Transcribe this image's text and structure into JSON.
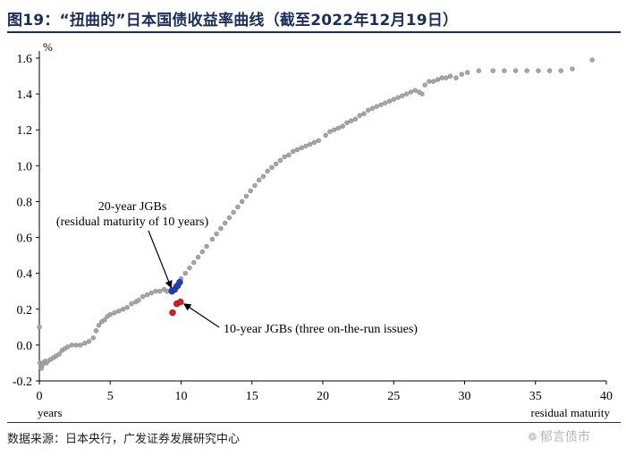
{
  "figure": {
    "title": "图19：“扭曲的”日本国债收益率曲线（截至2022年12月19日）",
    "source": "数据来源：日本央行，广发证券发展研究中心",
    "watermark": "郁言债市",
    "watermark_icon": "wechat-icon"
  },
  "chart_data": {
    "type": "scatter",
    "title": "",
    "ylabel": "%",
    "xlabel_left": "years",
    "xlabel_right": "residual maturity",
    "xlim": [
      0,
      40
    ],
    "ylim": [
      -0.2,
      1.6
    ],
    "x_ticks": [
      0,
      5,
      10,
      15,
      20,
      25,
      30,
      35,
      40
    ],
    "y_ticks": [
      -0.2,
      0.0,
      0.2,
      0.4,
      0.6,
      0.8,
      1.0,
      1.2,
      1.4,
      1.6
    ],
    "grid": false,
    "colors": {
      "all_jgbs": "#a6a6a6",
      "jgb20": "#1f3fbf",
      "jgb10": "#d42020"
    },
    "annotations": [
      {
        "id": "jgb20",
        "lines": [
          "20-year JGBs",
          "(residual maturity of 10 years)"
        ]
      },
      {
        "id": "jgb10",
        "lines": [
          "10-year JGBs (three on-the-run issues)"
        ]
      }
    ],
    "series": [
      {
        "key": "all",
        "points": [
          [
            0.0,
            0.1
          ],
          [
            0.05,
            -0.1
          ],
          [
            0.1,
            -0.12
          ],
          [
            0.15,
            -0.13
          ],
          [
            0.2,
            -0.11
          ],
          [
            0.3,
            -0.1
          ],
          [
            0.4,
            -0.09
          ],
          [
            0.5,
            -0.1
          ],
          [
            0.6,
            -0.09
          ],
          [
            0.8,
            -0.08
          ],
          [
            1.0,
            -0.07
          ],
          [
            1.2,
            -0.06
          ],
          [
            1.4,
            -0.05
          ],
          [
            1.6,
            -0.03
          ],
          [
            1.8,
            -0.02
          ],
          [
            2.0,
            -0.01
          ],
          [
            2.3,
            0.0
          ],
          [
            2.6,
            0.0
          ],
          [
            2.9,
            0.0
          ],
          [
            3.2,
            0.01
          ],
          [
            3.5,
            0.02
          ],
          [
            3.8,
            0.04
          ],
          [
            4.0,
            0.08
          ],
          [
            4.2,
            0.11
          ],
          [
            4.4,
            0.13
          ],
          [
            4.6,
            0.14
          ],
          [
            4.8,
            0.16
          ],
          [
            5.0,
            0.17
          ],
          [
            5.3,
            0.18
          ],
          [
            5.6,
            0.19
          ],
          [
            5.9,
            0.2
          ],
          [
            6.2,
            0.21
          ],
          [
            6.5,
            0.23
          ],
          [
            6.8,
            0.24
          ],
          [
            7.0,
            0.25
          ],
          [
            7.3,
            0.27
          ],
          [
            7.6,
            0.28
          ],
          [
            7.9,
            0.29
          ],
          [
            8.2,
            0.3
          ],
          [
            8.5,
            0.3
          ],
          [
            8.8,
            0.31
          ],
          [
            9.0,
            0.3
          ],
          [
            9.3,
            0.31
          ],
          [
            9.6,
            0.33
          ],
          [
            10.0,
            0.37
          ],
          [
            10.3,
            0.4
          ],
          [
            10.6,
            0.43
          ],
          [
            10.9,
            0.46
          ],
          [
            11.2,
            0.49
          ],
          [
            11.5,
            0.52
          ],
          [
            11.8,
            0.55
          ],
          [
            12.2,
            0.59
          ],
          [
            12.5,
            0.62
          ],
          [
            12.8,
            0.65
          ],
          [
            13.1,
            0.68
          ],
          [
            13.4,
            0.71
          ],
          [
            13.7,
            0.74
          ],
          [
            14.0,
            0.77
          ],
          [
            14.3,
            0.8
          ],
          [
            14.6,
            0.83
          ],
          [
            14.9,
            0.86
          ],
          [
            15.2,
            0.89
          ],
          [
            15.5,
            0.92
          ],
          [
            15.8,
            0.94
          ],
          [
            16.1,
            0.97
          ],
          [
            16.4,
            0.99
          ],
          [
            16.7,
            1.01
          ],
          [
            17.0,
            1.03
          ],
          [
            17.3,
            1.05
          ],
          [
            17.6,
            1.06
          ],
          [
            17.9,
            1.08
          ],
          [
            18.2,
            1.09
          ],
          [
            18.5,
            1.1
          ],
          [
            18.8,
            1.11
          ],
          [
            19.1,
            1.12
          ],
          [
            19.4,
            1.13
          ],
          [
            19.7,
            1.14
          ],
          [
            20.2,
            1.17
          ],
          [
            20.5,
            1.19
          ],
          [
            20.8,
            1.2
          ],
          [
            21.1,
            1.21
          ],
          [
            21.4,
            1.22
          ],
          [
            21.7,
            1.24
          ],
          [
            22.0,
            1.25
          ],
          [
            22.3,
            1.26
          ],
          [
            22.6,
            1.28
          ],
          [
            22.9,
            1.29
          ],
          [
            23.2,
            1.31
          ],
          [
            23.5,
            1.32
          ],
          [
            23.8,
            1.33
          ],
          [
            24.1,
            1.34
          ],
          [
            24.4,
            1.35
          ],
          [
            24.7,
            1.36
          ],
          [
            25.0,
            1.37
          ],
          [
            25.3,
            1.38
          ],
          [
            25.6,
            1.39
          ],
          [
            25.9,
            1.4
          ],
          [
            26.2,
            1.41
          ],
          [
            26.5,
            1.42
          ],
          [
            26.8,
            1.41
          ],
          [
            27.0,
            1.4
          ],
          [
            27.2,
            1.45
          ],
          [
            27.5,
            1.47
          ],
          [
            27.8,
            1.47
          ],
          [
            28.1,
            1.48
          ],
          [
            28.4,
            1.49
          ],
          [
            28.7,
            1.49
          ],
          [
            29.0,
            1.5
          ],
          [
            29.4,
            1.49
          ],
          [
            29.8,
            1.51
          ],
          [
            30.2,
            1.52
          ],
          [
            31.0,
            1.53
          ],
          [
            32.0,
            1.53
          ],
          [
            32.8,
            1.53
          ],
          [
            33.6,
            1.53
          ],
          [
            34.4,
            1.53
          ],
          [
            35.2,
            1.53
          ],
          [
            36.0,
            1.53
          ],
          [
            36.8,
            1.53
          ],
          [
            37.6,
            1.54
          ],
          [
            39.0,
            1.59
          ]
        ]
      },
      {
        "key": "jgb20",
        "points": [
          [
            9.35,
            0.3
          ],
          [
            9.55,
            0.31
          ],
          [
            9.75,
            0.33
          ],
          [
            9.9,
            0.35
          ]
        ]
      },
      {
        "key": "jgb10",
        "points": [
          [
            9.4,
            0.18
          ],
          [
            9.7,
            0.23
          ],
          [
            9.95,
            0.24
          ]
        ]
      }
    ]
  }
}
